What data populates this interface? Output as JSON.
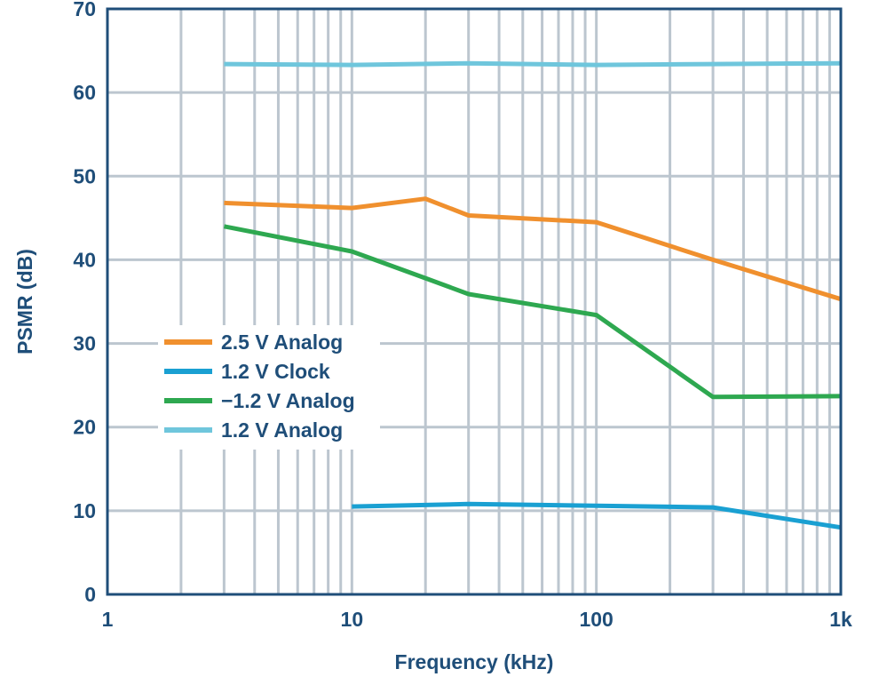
{
  "chart_data": {
    "type": "line",
    "title": "",
    "xlabel": "Frequency (kHz)",
    "ylabel": "PSMR  (dB)",
    "xscale": "log",
    "xlim": [
      1,
      1000
    ],
    "ylim": [
      0,
      70
    ],
    "x_ticks": [
      {
        "value": 1,
        "label": "1"
      },
      {
        "value": 10,
        "label": "10"
      },
      {
        "value": 100,
        "label": "100"
      },
      {
        "value": 1000,
        "label": "1k"
      }
    ],
    "y_ticks": [
      0,
      10,
      20,
      30,
      40,
      50,
      60,
      70
    ],
    "grid": true,
    "legend_position": "center-left",
    "series": [
      {
        "name": "2.5 V Analog",
        "color": "#f0902e",
        "x": [
          3,
          10,
          20,
          30,
          100,
          300,
          1000
        ],
        "y": [
          46.8,
          46.2,
          47.3,
          45.3,
          44.5,
          40.0,
          35.3
        ]
      },
      {
        "name": "1.2 V Clock",
        "color": "#1aa0d2",
        "x": [
          10,
          30,
          100,
          300,
          1000
        ],
        "y": [
          10.5,
          10.8,
          10.6,
          10.4,
          8.0
        ]
      },
      {
        "name": "−1.2 V Analog",
        "color": "#2ea850",
        "x": [
          3,
          10,
          20,
          30,
          100,
          300,
          1000
        ],
        "y": [
          44.0,
          41.0,
          37.8,
          35.9,
          33.4,
          23.6,
          23.7
        ]
      },
      {
        "name": "1.2 V Analog",
        "color": "#6fc6dc",
        "x": [
          3,
          10,
          30,
          100,
          300,
          1000
        ],
        "y": [
          63.4,
          63.3,
          63.5,
          63.3,
          63.4,
          63.5
        ]
      }
    ]
  }
}
